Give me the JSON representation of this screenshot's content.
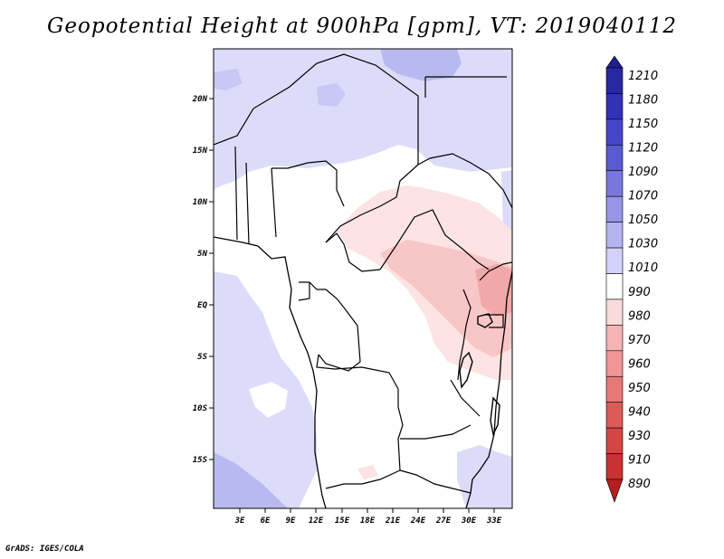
{
  "title": "Geopotential Height at 900hPa [gpm], VT: 2019040112",
  "footer": "GrADS: IGES/COLA",
  "map": {
    "variable": "Geopotential Height",
    "level": "900hPa",
    "units": "gpm",
    "valid_time": "2019040112",
    "lat_labels": [
      "20N",
      "15N",
      "10N",
      "5N",
      "EQ",
      "5S",
      "10S",
      "15S"
    ],
    "lon_labels": [
      "3E",
      "6E",
      "9E",
      "12E",
      "15E",
      "18E",
      "21E",
      "24E",
      "27E",
      "30E",
      "33E"
    ]
  },
  "colorbar": {
    "levels": [
      "1210",
      "1180",
      "1150",
      "1120",
      "1090",
      "1070",
      "1050",
      "1030",
      "1010",
      "990",
      "980",
      "970",
      "960",
      "950",
      "940",
      "930",
      "910",
      "890"
    ],
    "colors": [
      "#1e1e8c",
      "#2828a0",
      "#3232b4",
      "#4646c8",
      "#5a5ad2",
      "#7878dc",
      "#9696e6",
      "#b4b4f0",
      "#d2d2fa",
      "#ffffff",
      "#fadcdc",
      "#f5b4b4",
      "#f09696",
      "#e67878",
      "#dc5a5a",
      "#d24646",
      "#c83232",
      "#b41e1e"
    ]
  }
}
